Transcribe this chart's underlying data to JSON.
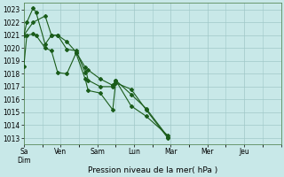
{
  "xlabel": "Pression niveau de la mer( hPa )",
  "bg_color": "#c8e8e8",
  "grid_color": "#a0c8c8",
  "line_color": "#1a5c1a",
  "ylim": [
    1012.5,
    1023.5
  ],
  "yticks": [
    1013,
    1014,
    1015,
    1016,
    1017,
    1018,
    1019,
    1020,
    1021,
    1022,
    1023
  ],
  "xlim": [
    0,
    7
  ],
  "day_tick_positions": [
    0,
    1,
    2,
    3,
    4,
    5,
    6,
    7
  ],
  "day_tick_labels": [
    "Sa\nDim",
    "Ven",
    "Sam",
    "Lun",
    "Mar",
    "Mer",
    "Jeu",
    ""
  ],
  "series1_x": [
    0.0,
    0.08,
    0.25,
    0.33,
    0.58,
    0.75,
    0.92,
    1.17,
    1.42,
    1.67,
    1.75,
    2.08,
    2.42,
    2.5,
    2.92,
    3.33,
    3.92
  ],
  "series1_y": [
    1018.6,
    1021.0,
    1021.1,
    1021.0,
    1020.0,
    1019.8,
    1018.1,
    1018.0,
    1019.6,
    1017.6,
    1016.7,
    1016.5,
    1015.2,
    1017.3,
    1016.8,
    1015.2,
    1013.0
  ],
  "series2_x": [
    0.0,
    0.25,
    0.58,
    0.75,
    0.92,
    1.17,
    1.42,
    1.67,
    1.75,
    2.08,
    2.42,
    2.5,
    2.92,
    3.33,
    3.92
  ],
  "series2_y": [
    1021.0,
    1022.0,
    1022.5,
    1021.0,
    1021.0,
    1020.5,
    1019.7,
    1018.5,
    1017.5,
    1017.0,
    1017.0,
    1017.5,
    1015.5,
    1014.7,
    1013.2
  ],
  "series3_x": [
    0.0,
    0.08,
    0.25,
    0.33,
    0.58,
    0.75,
    0.92,
    1.17,
    1.42,
    1.67,
    1.75,
    2.08,
    2.42,
    2.5,
    2.92,
    3.33,
    3.92
  ],
  "series3_y": [
    1021.0,
    1022.0,
    1023.1,
    1022.8,
    1020.3,
    1021.0,
    1021.0,
    1019.9,
    1019.8,
    1018.1,
    1018.3,
    1017.6,
    1017.1,
    1017.5,
    1016.4,
    1015.3,
    1013.1
  ],
  "figsize": [
    3.2,
    2.0
  ],
  "dpi": 100
}
